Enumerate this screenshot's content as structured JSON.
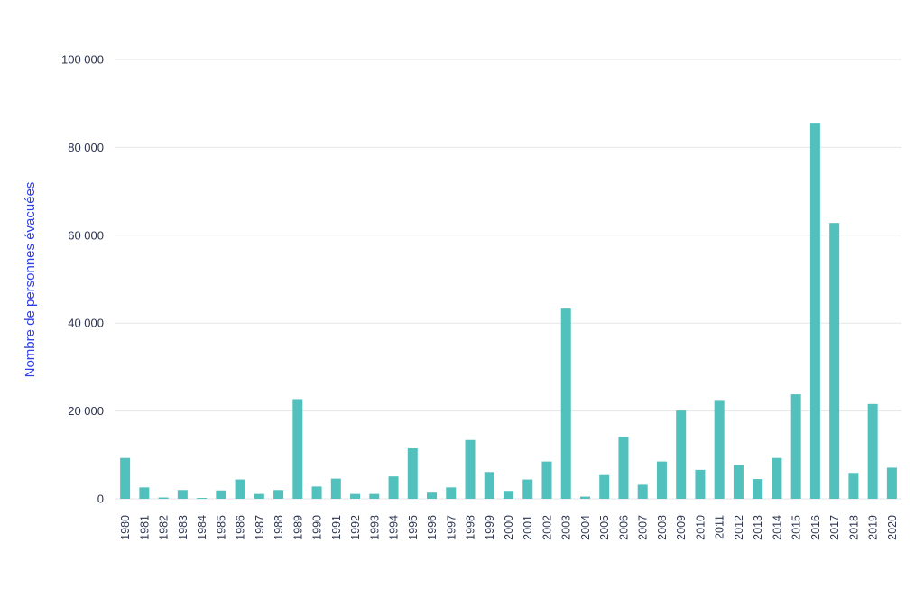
{
  "chart_data": {
    "type": "bar",
    "title": "",
    "xlabel": "",
    "ylabel": "Nombre de personnes évacuées",
    "ylim": [
      0,
      100000
    ],
    "yticks": [
      0,
      20000,
      40000,
      60000,
      80000,
      100000
    ],
    "ytick_labels": [
      "0",
      "20 000",
      "40 000",
      "60 000",
      "80 000",
      "100 000"
    ],
    "grid": true,
    "legend": null,
    "bar_color": "#52c1bd",
    "ylabel_color": "#2f3fe8",
    "categories": [
      "1980",
      "1981",
      "1982",
      "1983",
      "1984",
      "1985",
      "1986",
      "1987",
      "1988",
      "1989",
      "1990",
      "1991",
      "1992",
      "1993",
      "1994",
      "1995",
      "1996",
      "1997",
      "1998",
      "1999",
      "2000",
      "2001",
      "2002",
      "2003",
      "2004",
      "2005",
      "2006",
      "2007",
      "2008",
      "2009",
      "2010",
      "2011",
      "2012",
      "2013",
      "2014",
      "2015",
      "2016",
      "2017",
      "2018",
      "2019",
      "2020"
    ],
    "values": [
      9300,
      2600,
      300,
      2000,
      200,
      1900,
      4400,
      1100,
      2000,
      22700,
      2800,
      4600,
      1100,
      1100,
      5100,
      11500,
      1400,
      2600,
      13400,
      6100,
      1800,
      4400,
      8500,
      43300,
      500,
      5400,
      14100,
      3200,
      8500,
      20100,
      6600,
      22300,
      7700,
      4500,
      9300,
      23800,
      85600,
      62800,
      5900,
      21600,
      7100
    ]
  }
}
